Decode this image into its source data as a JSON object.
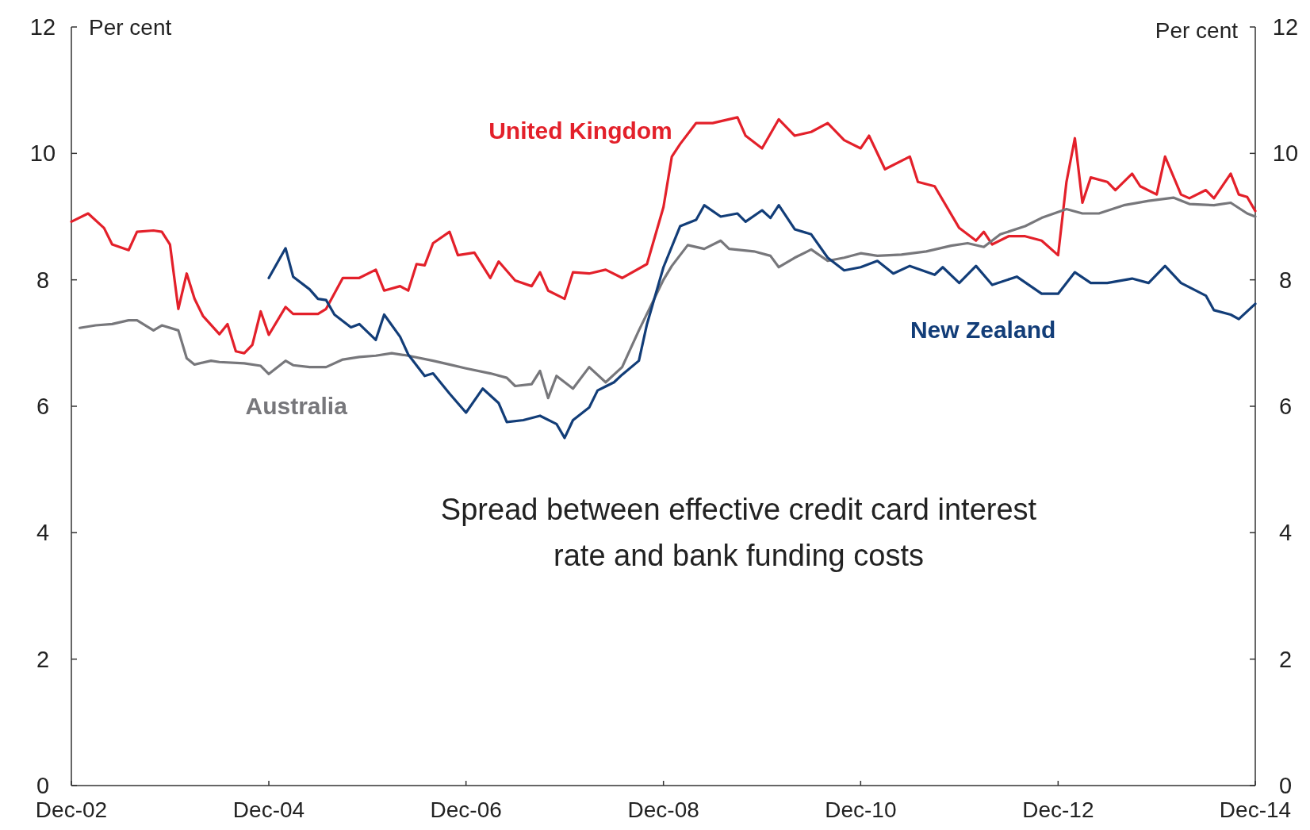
{
  "chart_data": {
    "type": "line",
    "ylabel": "Per cent",
    "y2label": "Per cent",
    "xlim": [
      "2002-12",
      "2014-12"
    ],
    "xticks": [
      {
        "value": "2002-12",
        "label": "Dec-02"
      },
      {
        "value": "2004-12",
        "label": "Dec-04"
      },
      {
        "value": "2006-12",
        "label": "Dec-06"
      },
      {
        "value": "2008-12",
        "label": "Dec-08"
      },
      {
        "value": "2010-12",
        "label": "Dec-10"
      },
      {
        "value": "2012-12",
        "label": "Dec-12"
      },
      {
        "value": "2014-12",
        "label": "Dec-14"
      }
    ],
    "ylim": [
      0,
      12
    ],
    "yticks": [
      0,
      2,
      4,
      6,
      8,
      10,
      12
    ],
    "y2lim": [
      0,
      12
    ],
    "y2ticks": [
      0,
      2,
      4,
      6,
      8,
      10,
      12
    ],
    "grid": false,
    "marker": "none",
    "line_style": "solid",
    "annotations": [
      "Spread between effective credit card interest rate and bank funding costs"
    ],
    "series": [
      {
        "name": "United Kingdom",
        "color": "#e3202a",
        "x": [
          "2002-12",
          "2003-02",
          "2003-04",
          "2003-05",
          "2003-07",
          "2003-08",
          "2003-10",
          "2003-11",
          "2003-12",
          "2004-01",
          "2004-02",
          "2004-03",
          "2004-04",
          "2004-06",
          "2004-07",
          "2004-08",
          "2004-09",
          "2004-10",
          "2004-11",
          "2004-12",
          "2005-02",
          "2005-03",
          "2005-06",
          "2005-07",
          "2005-09",
          "2005-11",
          "2006-01",
          "2006-02",
          "2006-04",
          "2006-05",
          "2006-06",
          "2006-07",
          "2006-08",
          "2006-10",
          "2006-11",
          "2007-01",
          "2007-03",
          "2007-04",
          "2007-06",
          "2007-08",
          "2007-09",
          "2007-10",
          "2007-12",
          "2008-01",
          "2008-03",
          "2008-05",
          "2008-07",
          "2008-10",
          "2008-12",
          "2009-01",
          "2009-02",
          "2009-04",
          "2009-06",
          "2009-09",
          "2009-10",
          "2009-12",
          "2010-02",
          "2010-04",
          "2010-06",
          "2010-08",
          "2010-10",
          "2010-12",
          "2011-01",
          "2011-03",
          "2011-06",
          "2011-07",
          "2011-09",
          "2011-12",
          "2012-02",
          "2012-03",
          "2012-04",
          "2012-06",
          "2012-08",
          "2012-10",
          "2012-12",
          "2013-01",
          "2013-02",
          "2013-03",
          "2013-04",
          "2013-06",
          "2013-07",
          "2013-09",
          "2013-10",
          "2013-12",
          "2014-01",
          "2014-03",
          "2014-04",
          "2014-06",
          "2014-07",
          "2014-09",
          "2014-10",
          "2014-11",
          "2014-12"
        ],
        "values": [
          8.92,
          9.05,
          8.82,
          8.56,
          8.47,
          8.76,
          8.78,
          8.76,
          8.56,
          7.54,
          8.1,
          7.7,
          7.43,
          7.14,
          7.3,
          6.87,
          6.84,
          6.97,
          7.5,
          7.13,
          7.57,
          7.46,
          7.46,
          7.54,
          8.03,
          8.03,
          8.16,
          7.83,
          7.9,
          7.83,
          8.25,
          8.23,
          8.58,
          8.76,
          8.39,
          8.43,
          8.03,
          8.29,
          7.99,
          7.9,
          8.12,
          7.83,
          7.7,
          8.12,
          8.1,
          8.16,
          8.03,
          8.25,
          9.15,
          9.95,
          10.15,
          10.48,
          10.48,
          10.57,
          10.28,
          10.08,
          10.54,
          10.28,
          10.34,
          10.48,
          10.21,
          10.08,
          10.28,
          9.75,
          9.95,
          9.55,
          9.48,
          8.82,
          8.62,
          8.76,
          8.56,
          8.69,
          8.69,
          8.62,
          8.39,
          9.55,
          10.24,
          9.22,
          9.62,
          9.55,
          9.42,
          9.68,
          9.48,
          9.35,
          9.95,
          9.35,
          9.29,
          9.42,
          9.29,
          9.68,
          9.35,
          9.31,
          9.09
        ]
      },
      {
        "name": "Australia",
        "color": "#77777b",
        "x": [
          "2003-01",
          "2003-03",
          "2003-05",
          "2003-07",
          "2003-08",
          "2003-10",
          "2003-11",
          "2004-01",
          "2004-02",
          "2004-03",
          "2004-05",
          "2004-06",
          "2004-09",
          "2004-11",
          "2004-12",
          "2005-02",
          "2005-03",
          "2005-05",
          "2005-07",
          "2005-09",
          "2005-11",
          "2006-01",
          "2006-03",
          "2006-05",
          "2006-08",
          "2006-10",
          "2006-12",
          "2007-03",
          "2007-05",
          "2007-06",
          "2007-08",
          "2007-09",
          "2007-10",
          "2007-11",
          "2008-01",
          "2008-03",
          "2008-05",
          "2008-07",
          "2008-09",
          "2008-12",
          "2009-01",
          "2009-03",
          "2009-05",
          "2009-07",
          "2009-08",
          "2009-11",
          "2010-01",
          "2010-02",
          "2010-04",
          "2010-06",
          "2010-08",
          "2010-10",
          "2010-12",
          "2011-02",
          "2011-05",
          "2011-08",
          "2011-11",
          "2012-01",
          "2012-03",
          "2012-05",
          "2012-08",
          "2012-10",
          "2013-01",
          "2013-03",
          "2013-05",
          "2013-08",
          "2013-11",
          "2014-02",
          "2014-04",
          "2014-07",
          "2014-09",
          "2014-11",
          "2014-12"
        ],
        "values": [
          7.24,
          7.28,
          7.3,
          7.36,
          7.36,
          7.2,
          7.28,
          7.2,
          6.76,
          6.66,
          6.72,
          6.7,
          6.68,
          6.64,
          6.51,
          6.72,
          6.65,
          6.62,
          6.62,
          6.74,
          6.78,
          6.8,
          6.84,
          6.8,
          6.72,
          6.66,
          6.6,
          6.52,
          6.45,
          6.32,
          6.35,
          6.56,
          6.13,
          6.48,
          6.28,
          6.62,
          6.38,
          6.62,
          7.2,
          8.0,
          8.22,
          8.55,
          8.49,
          8.62,
          8.49,
          8.45,
          8.38,
          8.2,
          8.35,
          8.48,
          8.3,
          8.35,
          8.42,
          8.38,
          8.4,
          8.45,
          8.54,
          8.58,
          8.52,
          8.72,
          8.85,
          8.98,
          9.12,
          9.05,
          9.05,
          9.18,
          9.25,
          9.3,
          9.2,
          9.18,
          9.22,
          9.05,
          9.0
        ]
      },
      {
        "name": "New Zealand",
        "color": "#123d78",
        "x": [
          "2004-12",
          "2005-02",
          "2005-03",
          "2005-05",
          "2005-06",
          "2005-07",
          "2005-08",
          "2005-10",
          "2005-11",
          "2006-01",
          "2006-02",
          "2006-04",
          "2006-05",
          "2006-07",
          "2006-08",
          "2006-10",
          "2006-12",
          "2007-02",
          "2007-04",
          "2007-05",
          "2007-07",
          "2007-09",
          "2007-11",
          "2007-12",
          "2008-01",
          "2008-03",
          "2008-04",
          "2008-06",
          "2008-07",
          "2008-09",
          "2008-10",
          "2008-12",
          "2009-02",
          "2009-04",
          "2009-05",
          "2009-07",
          "2009-09",
          "2009-10",
          "2009-12",
          "2010-01",
          "2010-02",
          "2010-04",
          "2010-06",
          "2010-08",
          "2010-10",
          "2010-12",
          "2011-02",
          "2011-04",
          "2011-06",
          "2011-09",
          "2011-10",
          "2011-12",
          "2012-02",
          "2012-04",
          "2012-07",
          "2012-10",
          "2012-12",
          "2013-02",
          "2013-04",
          "2013-06",
          "2013-09",
          "2013-11",
          "2014-01",
          "2014-03",
          "2014-06",
          "2014-07",
          "2014-09",
          "2014-10",
          "2014-12"
        ],
        "values": [
          8.03,
          8.5,
          8.05,
          7.85,
          7.7,
          7.68,
          7.45,
          7.25,
          7.3,
          7.05,
          7.45,
          7.1,
          6.82,
          6.48,
          6.52,
          6.2,
          5.9,
          6.28,
          6.05,
          5.75,
          5.78,
          5.85,
          5.72,
          5.5,
          5.78,
          5.98,
          6.25,
          6.38,
          6.5,
          6.72,
          7.3,
          8.2,
          8.85,
          8.95,
          9.18,
          9.0,
          9.05,
          8.92,
          9.1,
          8.98,
          9.18,
          8.8,
          8.72,
          8.35,
          8.15,
          8.2,
          8.3,
          8.1,
          8.22,
          8.08,
          8.2,
          7.95,
          8.22,
          7.92,
          8.05,
          7.78,
          7.78,
          8.12,
          7.95,
          7.95,
          8.02,
          7.95,
          8.22,
          7.95,
          7.75,
          7.52,
          7.45,
          7.38,
          7.62
        ]
      }
    ]
  }
}
